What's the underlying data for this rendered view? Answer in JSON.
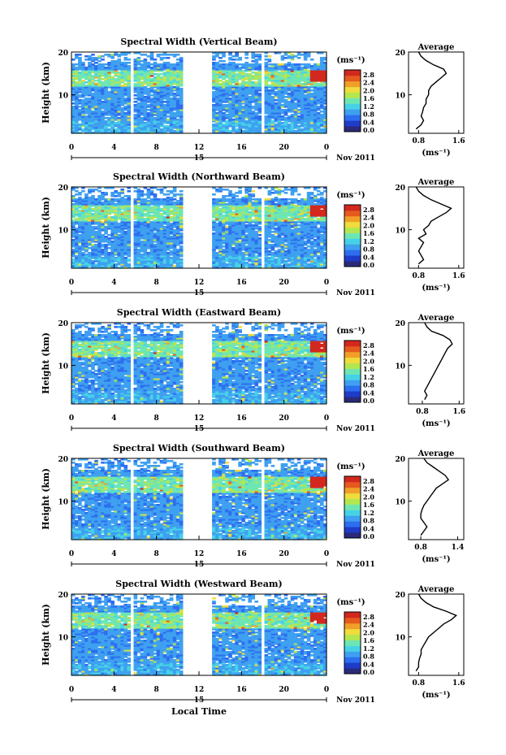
{
  "figure": {
    "date_label": "Nov 2011",
    "day_label": "15",
    "xlabel": "Local Time",
    "ylabel": "Height (km)",
    "colorbar": {
      "unit": "(ms⁻¹)",
      "ticks": [
        "2.8",
        "2.4",
        "2.0",
        "1.6",
        "1.2",
        "0.8",
        "0.4",
        "0.0"
      ],
      "colors": [
        "#2a2a7a",
        "#1e3cc8",
        "#2d6ef0",
        "#3fa0f0",
        "#46d2e6",
        "#6ee6b4",
        "#b4e650",
        "#f0dc3c",
        "#f0a028",
        "#e65a1e",
        "#d2281e"
      ]
    }
  },
  "chart_data": [
    {
      "type": "heatmap",
      "title": "Spectral Width (Vertical Beam)",
      "xlabel": "Local Time",
      "ylabel": "Height (km)",
      "x_ticks": [
        "0",
        "4",
        "8",
        "12",
        "16",
        "20",
        "0"
      ],
      "y_ticks": [
        "20",
        "10"
      ],
      "xlim": [
        0,
        24
      ],
      "ylim": [
        1,
        20
      ],
      "data_gaps_hours": [
        [
          5.5,
          5.9
        ],
        [
          10.6,
          13.3
        ],
        [
          17.7,
          18.1
        ]
      ],
      "colorbar_range": [
        0.0,
        2.8
      ],
      "profile": {
        "title": "Average",
        "xlabel": "(ms⁻¹)",
        "x_ticks": [
          "0.8",
          "1.6"
        ],
        "xlim": [
          0.6,
          1.7
        ],
        "height_km": [
          2,
          3,
          4,
          5,
          6,
          7,
          8,
          9,
          10,
          11,
          12,
          13,
          14,
          15,
          16,
          17,
          18,
          19,
          20
        ],
        "values": [
          0.75,
          0.85,
          0.9,
          0.85,
          0.88,
          0.9,
          0.95,
          0.95,
          1.0,
          1.0,
          1.05,
          1.15,
          1.25,
          1.35,
          1.3,
          1.1,
          0.95,
          0.85,
          0.8
        ]
      }
    },
    {
      "type": "heatmap",
      "title": "Spectral Width (Northward Beam)",
      "xlabel": "Local Time",
      "ylabel": "Height (km)",
      "x_ticks": [
        "0",
        "4",
        "8",
        "12",
        "16",
        "20",
        "0"
      ],
      "y_ticks": [
        "20",
        "10"
      ],
      "xlim": [
        0,
        24
      ],
      "ylim": [
        1,
        20
      ],
      "data_gaps_hours": [
        [
          5.5,
          5.9
        ],
        [
          10.6,
          13.3
        ],
        [
          17.7,
          18.1
        ]
      ],
      "colorbar_range": [
        0.0,
        2.8
      ],
      "profile": {
        "title": "Average",
        "xlabel": "(ms⁻¹)",
        "x_ticks": [
          "0.8",
          "1.6"
        ],
        "xlim": [
          0.6,
          1.7
        ],
        "height_km": [
          2,
          3,
          4,
          5,
          6,
          7,
          8,
          9,
          10,
          11,
          12,
          13,
          14,
          15,
          16,
          17,
          18,
          19,
          20
        ],
        "values": [
          0.8,
          0.9,
          0.85,
          0.8,
          0.85,
          0.9,
          0.8,
          0.95,
          0.9,
          1.0,
          1.05,
          1.2,
          1.35,
          1.45,
          1.25,
          1.05,
          0.9,
          0.8,
          0.75
        ]
      }
    },
    {
      "type": "heatmap",
      "title": "Spectral Width (Eastward Beam)",
      "xlabel": "Local Time",
      "ylabel": "Height (km)",
      "x_ticks": [
        "0",
        "4",
        "8",
        "12",
        "16",
        "20",
        "0"
      ],
      "y_ticks": [
        "20",
        "10"
      ],
      "xlim": [
        0,
        24
      ],
      "ylim": [
        1,
        20
      ],
      "data_gaps_hours": [
        [
          5.5,
          5.9
        ],
        [
          10.6,
          13.3
        ],
        [
          17.7,
          18.1
        ]
      ],
      "colorbar_range": [
        0.0,
        2.8
      ],
      "profile": {
        "title": "Average",
        "xlabel": "(ms⁻¹)",
        "x_ticks": [
          "0.8",
          "1.6"
        ],
        "xlim": [
          0.5,
          1.7
        ],
        "height_km": [
          2,
          3,
          4,
          5,
          6,
          7,
          8,
          9,
          10,
          11,
          12,
          13,
          14,
          15,
          16,
          17,
          18,
          19,
          20
        ],
        "values": [
          0.85,
          0.9,
          0.85,
          0.9,
          0.95,
          1.0,
          1.05,
          1.1,
          1.15,
          1.2,
          1.25,
          1.3,
          1.35,
          1.45,
          1.4,
          1.25,
          1.0,
          0.9,
          0.85
        ]
      }
    },
    {
      "type": "heatmap",
      "title": "Spectral Width (Southward Beam)",
      "xlabel": "Local Time",
      "ylabel": "Height (km)",
      "x_ticks": [
        "0",
        "4",
        "8",
        "12",
        "16",
        "20",
        "0"
      ],
      "y_ticks": [
        "20",
        "10"
      ],
      "xlim": [
        0,
        24
      ],
      "ylim": [
        1,
        20
      ],
      "data_gaps_hours": [
        [
          5.5,
          5.9
        ],
        [
          10.6,
          13.3
        ],
        [
          17.7,
          18.1
        ]
      ],
      "colorbar_range": [
        0.0,
        2.8
      ],
      "profile": {
        "title": "Average",
        "xlabel": "(ms⁻¹)",
        "x_ticks": [
          "0.8",
          "1.4"
        ],
        "xlim": [
          0.6,
          1.5
        ],
        "height_km": [
          2,
          3,
          4,
          5,
          6,
          7,
          8,
          9,
          10,
          11,
          12,
          13,
          14,
          15,
          16,
          17,
          18,
          19,
          20
        ],
        "values": [
          0.8,
          0.85,
          0.9,
          0.85,
          0.8,
          0.8,
          0.82,
          0.85,
          0.9,
          0.95,
          1.0,
          1.05,
          1.15,
          1.25,
          1.2,
          1.1,
          1.0,
          0.9,
          0.85
        ]
      }
    },
    {
      "type": "heatmap",
      "title": "Spectral Width (Westward Beam)",
      "xlabel": "Local Time",
      "ylabel": "Height (km)",
      "x_ticks": [
        "0",
        "4",
        "8",
        "12",
        "16",
        "20",
        "0"
      ],
      "y_ticks": [
        "20",
        "10"
      ],
      "xlim": [
        0,
        24
      ],
      "ylim": [
        1,
        20
      ],
      "data_gaps_hours": [
        [
          5.5,
          5.9
        ],
        [
          10.6,
          13.3
        ],
        [
          17.7,
          18.1
        ]
      ],
      "colorbar_range": [
        0.0,
        2.8
      ],
      "profile": {
        "title": "Average",
        "xlabel": "(ms⁻¹)",
        "x_ticks": [
          "0.8",
          "1.6"
        ],
        "xlim": [
          0.6,
          1.7
        ],
        "height_km": [
          2,
          3,
          4,
          5,
          6,
          7,
          8,
          9,
          10,
          11,
          12,
          13,
          14,
          15,
          16,
          17,
          18,
          19,
          20
        ],
        "values": [
          0.75,
          0.8,
          0.8,
          0.82,
          0.85,
          0.85,
          0.9,
          0.95,
          1.0,
          1.1,
          1.2,
          1.3,
          1.45,
          1.55,
          1.35,
          1.1,
          0.95,
          0.85,
          0.8
        ]
      }
    }
  ]
}
